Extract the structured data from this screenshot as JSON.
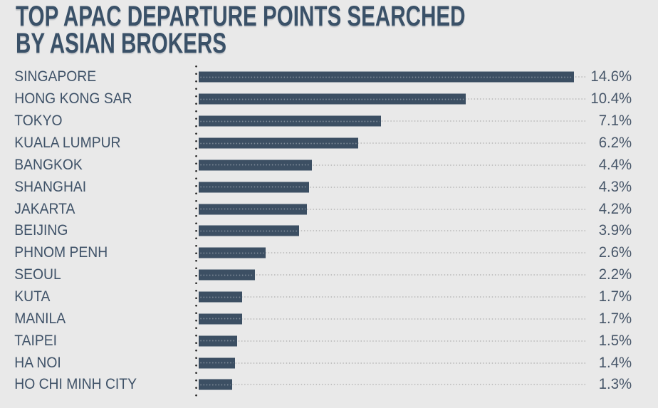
{
  "background_color": "#e9e9e9",
  "title": {
    "line1": "TOP APAC DEPARTURE POINTS SEARCHED",
    "line2": "BY ASIAN BROKERS"
  },
  "colors": {
    "bar": "#3c4f63",
    "title_text": "#3a5168",
    "category_text": "#3f5268",
    "value_text": "#475669",
    "gridline_dots": "#bdbdbd",
    "axis_dots": "#1d1d1d"
  },
  "chart_data": {
    "type": "bar",
    "orientation": "horizontal",
    "title": "TOP APAC DEPARTURE POINTS SEARCHED BY ASIAN BROKERS",
    "categories": [
      "SINGAPORE",
      "HONG KONG SAR",
      "TOKYO",
      "KUALA LUMPUR",
      "BANGKOK",
      "SHANGHAI",
      "JAKARTA",
      "BEIJING",
      "PHNOM PENH",
      "SEOUL",
      "KUTA",
      "MANILA",
      "TAIPEI",
      "HA NOI",
      "HO CHI MINH CITY"
    ],
    "values": [
      14.6,
      10.4,
      7.1,
      6.2,
      4.4,
      4.3,
      4.2,
      3.9,
      2.6,
      2.2,
      1.7,
      1.7,
      1.5,
      1.4,
      1.3
    ],
    "value_labels": [
      "14.6%",
      "10.4%",
      "7.1%",
      "6.2%",
      "4.4%",
      "4.3%",
      "4.2%",
      "3.9%",
      "2.6%",
      "2.2%",
      "1.7%",
      "1.7%",
      "1.5%",
      "1.4%",
      "1.3%"
    ],
    "unit": "%",
    "xlim": [
      0,
      15.07
    ],
    "grid": "dotted horizontal guide per row, from axis to value labels",
    "axis": "dotted vertical baseline at left of bars",
    "legend": "none",
    "value_label_position": "right of each row"
  }
}
